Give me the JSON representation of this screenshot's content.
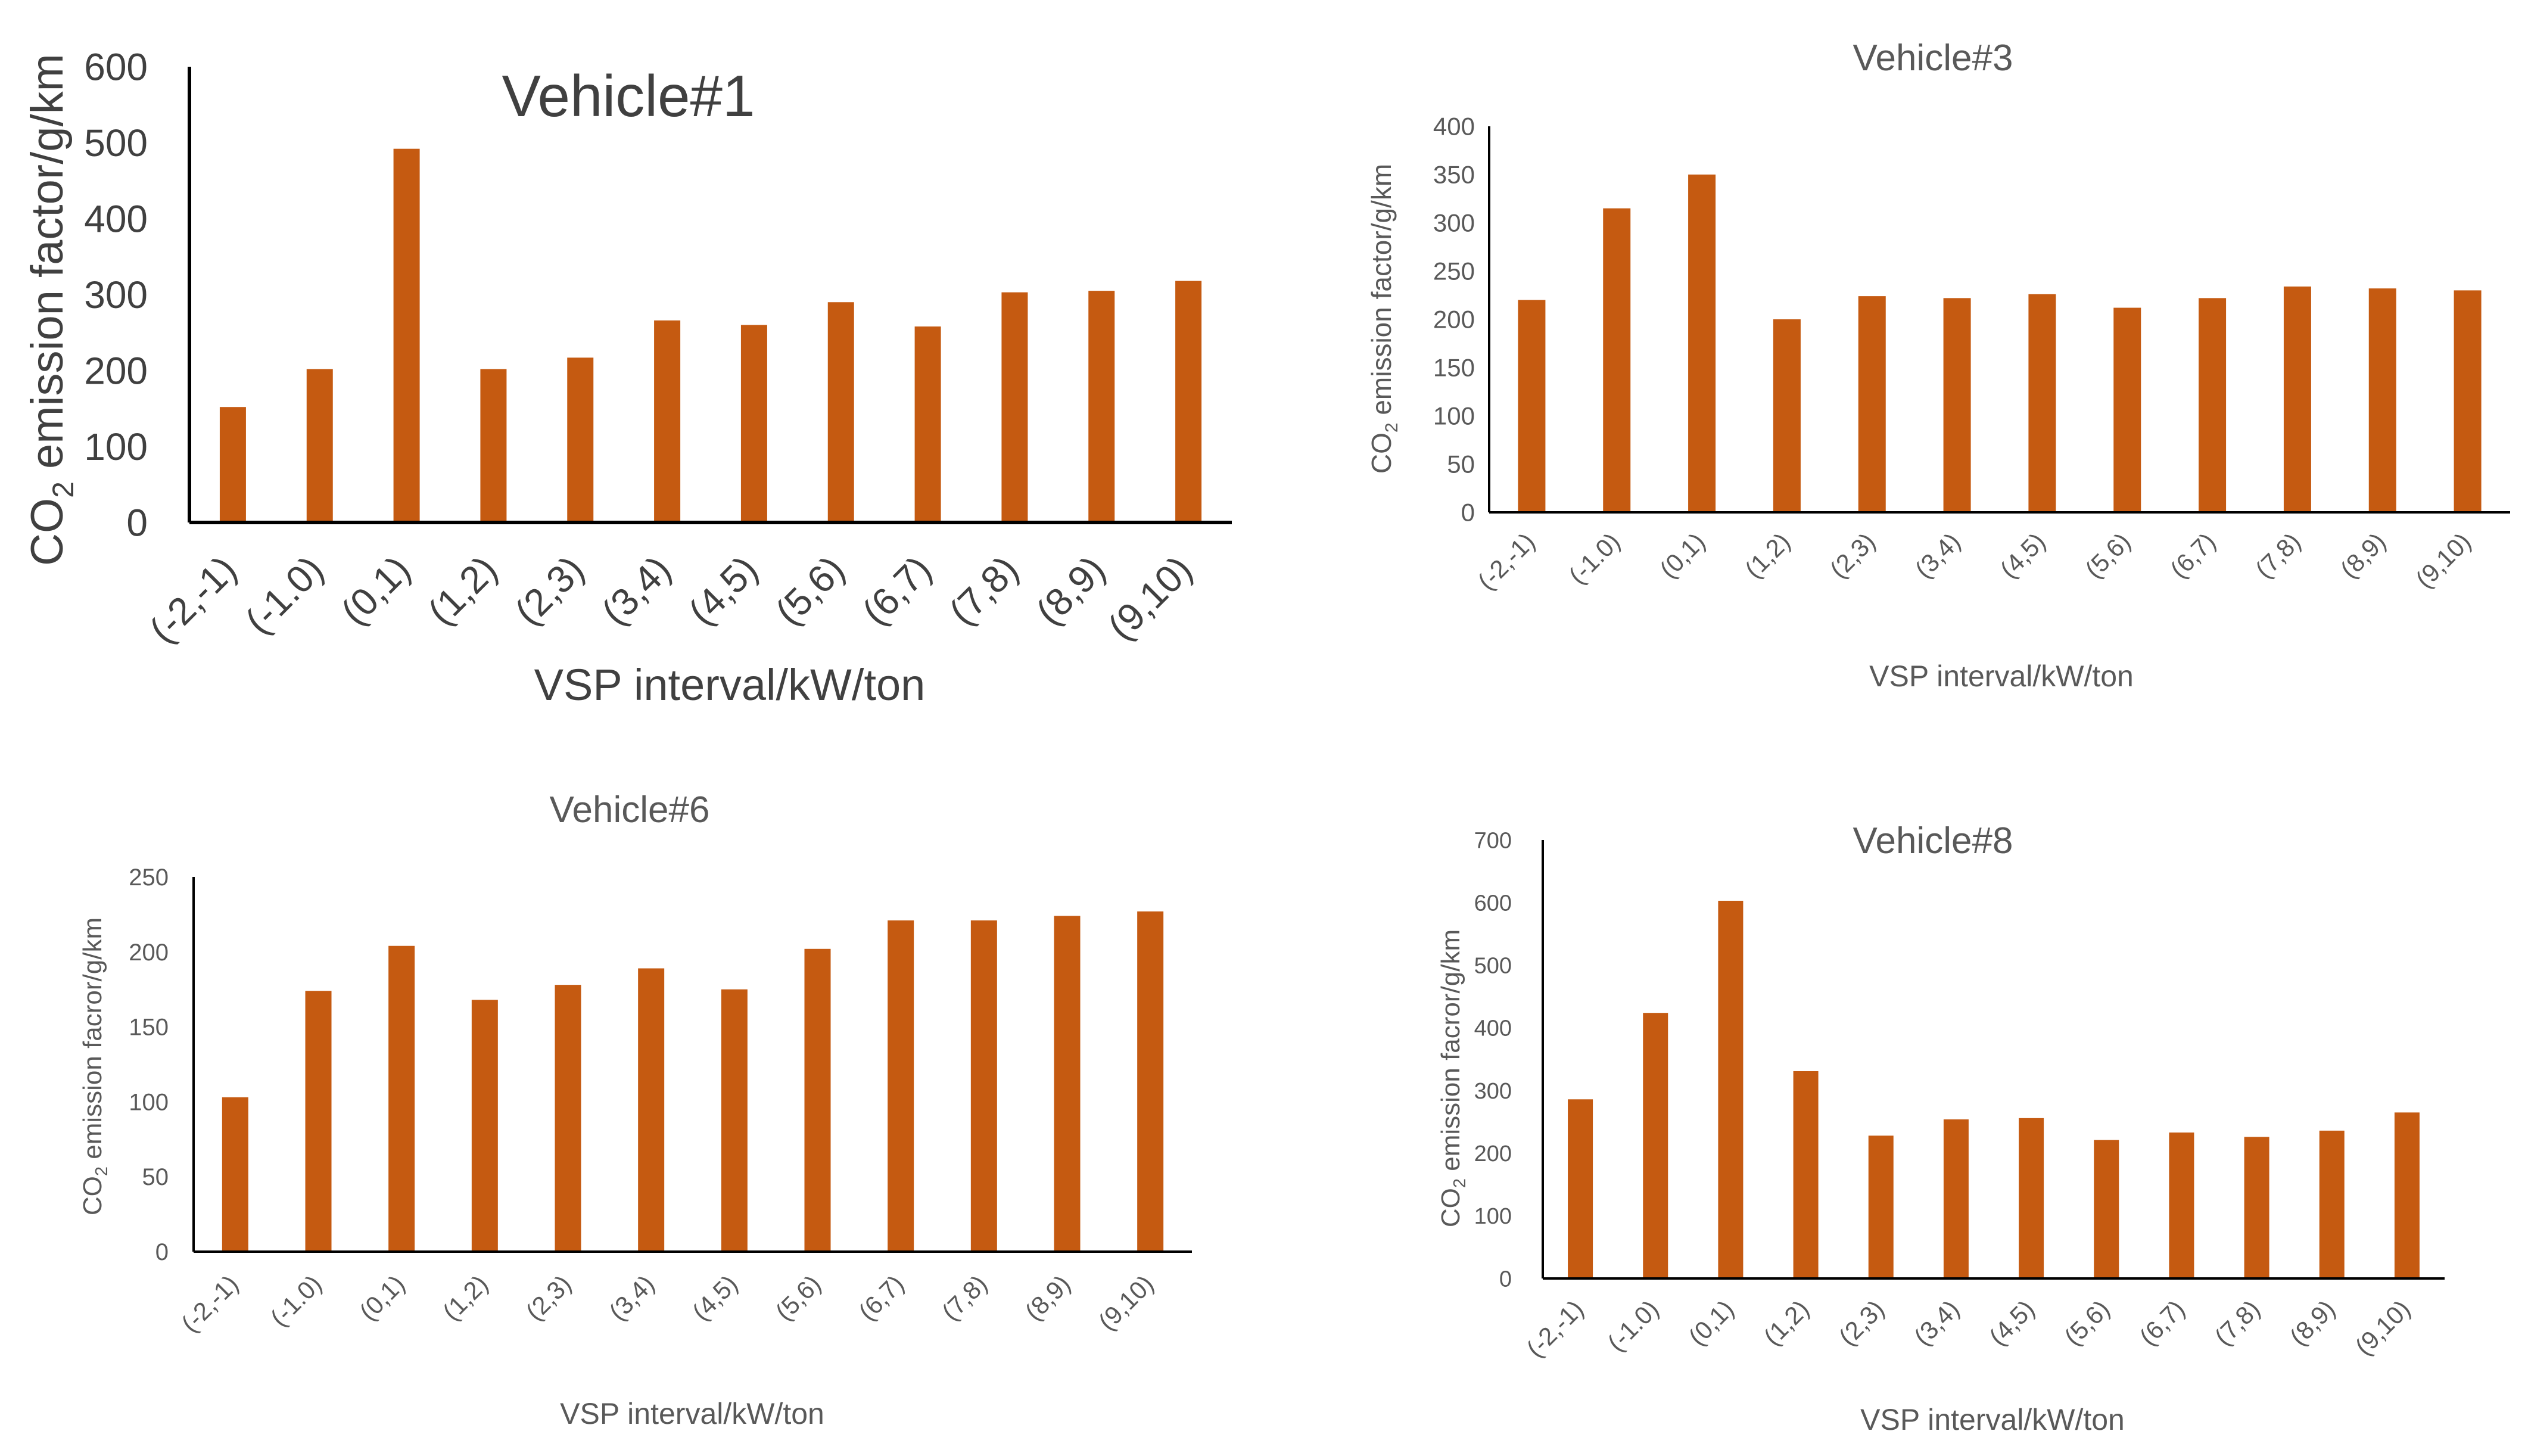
{
  "figure": {
    "bar_color": "#C55A11",
    "axis_color": "#000000",
    "text_color": "#595959"
  },
  "chart_data": [
    {
      "type": "bar",
      "title": "Vehicle#1",
      "ylabel_prefix": "CO",
      "ylabel_sub": "2",
      "ylabel_suffix": " emission factor/g/km",
      "xlabel": "VSP interval/kW/ton",
      "categories": [
        "(-2,-1)",
        "(-1.0)",
        "(0,1)",
        "(1,2)",
        "(2,3)",
        "(3,4)",
        "(4,5)",
        "(5,6)",
        "(6,7)",
        "(7,8)",
        "(8,9)",
        "(9,10)"
      ],
      "values": [
        152,
        202,
        492,
        202,
        217,
        266,
        260,
        290,
        258,
        303,
        305,
        318
      ],
      "ylim": [
        0,
        600
      ],
      "yticks": [
        "0",
        "100",
        "200",
        "300",
        "400",
        "500",
        "600"
      ]
    },
    {
      "type": "bar",
      "title": "Vehicle#3",
      "ylabel_prefix": "CO",
      "ylabel_sub": "2",
      "ylabel_suffix": " emission factor/g/km",
      "xlabel": "VSP  interval/kW/ton",
      "categories": [
        "(-2,-1)",
        "(-1.0)",
        "(0,1)",
        "(1,2)",
        "(2,3)",
        "(3,4)",
        "(4,5)",
        "(5,6)",
        "(6,7)",
        "(7,8)",
        "(8,9)",
        "(9,10)"
      ],
      "values": [
        220,
        315,
        350,
        200,
        224,
        222,
        226,
        212,
        222,
        234,
        232,
        230
      ],
      "ylim": [
        0,
        400
      ],
      "yticks": [
        "0",
        "50",
        "100",
        "150",
        "200",
        "250",
        "300",
        "350",
        "400"
      ]
    },
    {
      "type": "bar",
      "title": "Vehicle#6",
      "ylabel_prefix": "CO",
      "ylabel_sub": "2",
      "ylabel_suffix": " emission facror/g/km",
      "xlabel": "VSP interval/kW/ton",
      "categories": [
        "(-2,-1)",
        "(-1.0)",
        "(0,1)",
        "(1,2)",
        "(2,3)",
        "(3,4)",
        "(4,5)",
        "(5,6)",
        "(6,7)",
        "(7,8)",
        "(8,9)",
        "(9,10)"
      ],
      "values": [
        103,
        174,
        204,
        168,
        178,
        189,
        175,
        202,
        221,
        221,
        224,
        227
      ],
      "ylim": [
        0,
        250
      ],
      "yticks": [
        "0",
        "50",
        "100",
        "150",
        "200",
        "250"
      ]
    },
    {
      "type": "bar",
      "title": "Vehicle#8",
      "ylabel_prefix": "CO",
      "ylabel_sub": "2",
      "ylabel_suffix": " emission facror/g/km",
      "xlabel": "VSP  interval/kW/ton",
      "categories": [
        "(-2,-1)",
        "(-1.0)",
        "(0,1)",
        "(1,2)",
        "(2,3)",
        "(3,4)",
        "(4,5)",
        "(5,6)",
        "(6,7)",
        "(7,8)",
        "(8,9)",
        "(9,10)"
      ],
      "values": [
        286,
        424,
        603,
        331,
        228,
        254,
        256,
        221,
        233,
        226,
        236,
        265
      ],
      "ylim": [
        0,
        700
      ],
      "yticks": [
        "0",
        "100",
        "200",
        "300",
        "400",
        "500",
        "600",
        "700"
      ]
    }
  ]
}
